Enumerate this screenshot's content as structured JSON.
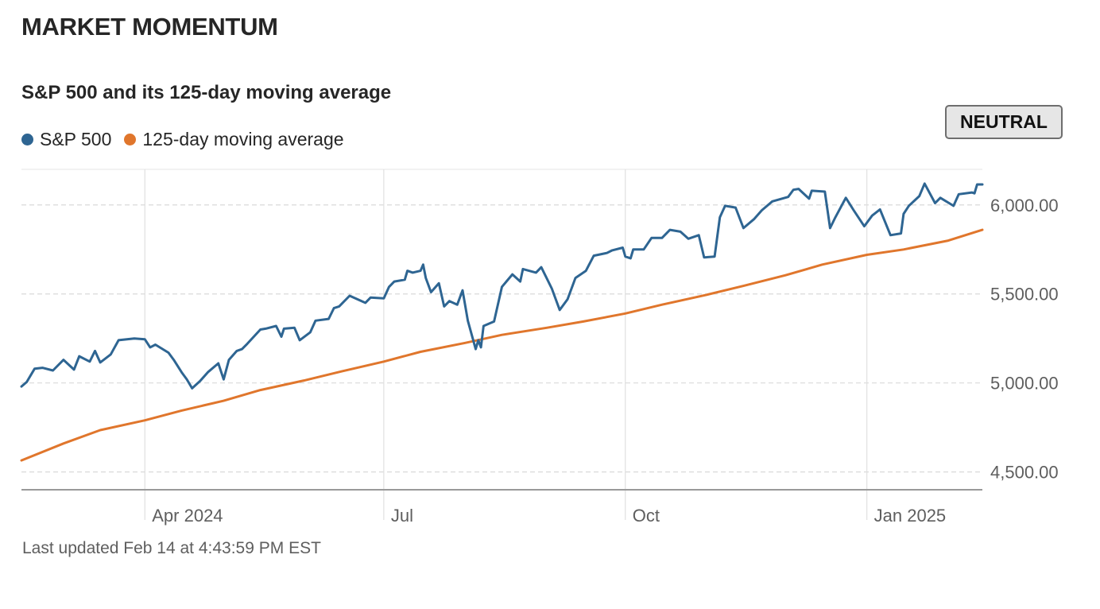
{
  "section": {
    "title": "MARKET MOMENTUM"
  },
  "status": {
    "label": "NEUTRAL"
  },
  "footer": {
    "updated": "Last updated Feb 14 at 4:43:59 PM EST"
  },
  "colors": {
    "sp500": "#2e6592",
    "moving_average": "#e0762c",
    "grid": "#d9d9d9",
    "axis": "#999999"
  },
  "chart_data": {
    "type": "line",
    "title": "S&P 500 and its 125-day moving average",
    "xlabel": "",
    "ylabel": "",
    "ylim": [
      4400,
      6200
    ],
    "x_range": [
      "2024-02-14",
      "2025-02-14"
    ],
    "x_ticks": [
      {
        "label": "Apr 2024",
        "date": "2024-04-01"
      },
      {
        "label": "Jul",
        "date": "2024-07-01"
      },
      {
        "label": "Oct",
        "date": "2024-10-01"
      },
      {
        "label": "Jan 2025",
        "date": "2025-01-01"
      }
    ],
    "y_ticks": [
      {
        "value": 4500,
        "label": "4,500.00"
      },
      {
        "value": 5000,
        "label": "5,000.00"
      },
      {
        "value": 5500,
        "label": "5,500.00"
      },
      {
        "value": 6000,
        "label": "6,000.00"
      }
    ],
    "legend": "top-left",
    "series": [
      {
        "name": "S&P 500",
        "color": "#2e6592",
        "points": [
          [
            "2024-02-14",
            4980
          ],
          [
            "2024-02-16",
            5005
          ],
          [
            "2024-02-19",
            5080
          ],
          [
            "2024-02-22",
            5085
          ],
          [
            "2024-02-26",
            5070
          ],
          [
            "2024-03-01",
            5130
          ],
          [
            "2024-03-05",
            5075
          ],
          [
            "2024-03-07",
            5150
          ],
          [
            "2024-03-11",
            5120
          ],
          [
            "2024-03-13",
            5180
          ],
          [
            "2024-03-15",
            5115
          ],
          [
            "2024-03-19",
            5160
          ],
          [
            "2024-03-22",
            5240
          ],
          [
            "2024-03-28",
            5250
          ],
          [
            "2024-04-01",
            5245
          ],
          [
            "2024-04-03",
            5200
          ],
          [
            "2024-04-05",
            5215
          ],
          [
            "2024-04-10",
            5170
          ],
          [
            "2024-04-12",
            5130
          ],
          [
            "2024-04-15",
            5060
          ],
          [
            "2024-04-17",
            5020
          ],
          [
            "2024-04-19",
            4970
          ],
          [
            "2024-04-22",
            5010
          ],
          [
            "2024-04-25",
            5060
          ],
          [
            "2024-04-29",
            5110
          ],
          [
            "2024-05-01",
            5020
          ],
          [
            "2024-05-03",
            5130
          ],
          [
            "2024-05-06",
            5180
          ],
          [
            "2024-05-08",
            5190
          ],
          [
            "2024-05-10",
            5220
          ],
          [
            "2024-05-15",
            5300
          ],
          [
            "2024-05-17",
            5305
          ],
          [
            "2024-05-21",
            5320
          ],
          [
            "2024-05-23",
            5260
          ],
          [
            "2024-05-24",
            5305
          ],
          [
            "2024-05-28",
            5310
          ],
          [
            "2024-05-30",
            5240
          ],
          [
            "2024-06-03",
            5285
          ],
          [
            "2024-06-05",
            5350
          ],
          [
            "2024-06-10",
            5360
          ],
          [
            "2024-06-12",
            5420
          ],
          [
            "2024-06-14",
            5430
          ],
          [
            "2024-06-18",
            5490
          ],
          [
            "2024-06-24",
            5450
          ],
          [
            "2024-06-26",
            5480
          ],
          [
            "2024-07-01",
            5475
          ],
          [
            "2024-07-03",
            5540
          ],
          [
            "2024-07-05",
            5570
          ],
          [
            "2024-07-09",
            5580
          ],
          [
            "2024-07-10",
            5630
          ],
          [
            "2024-07-12",
            5620
          ],
          [
            "2024-07-15",
            5630
          ],
          [
            "2024-07-16",
            5665
          ],
          [
            "2024-07-17",
            5590
          ],
          [
            "2024-07-19",
            5510
          ],
          [
            "2024-07-22",
            5560
          ],
          [
            "2024-07-24",
            5430
          ],
          [
            "2024-07-26",
            5460
          ],
          [
            "2024-07-29",
            5440
          ],
          [
            "2024-07-31",
            5520
          ],
          [
            "2024-08-02",
            5350
          ],
          [
            "2024-08-05",
            5190
          ],
          [
            "2024-08-06",
            5240
          ],
          [
            "2024-08-07",
            5200
          ],
          [
            "2024-08-08",
            5320
          ],
          [
            "2024-08-12",
            5345
          ],
          [
            "2024-08-15",
            5540
          ],
          [
            "2024-08-19",
            5610
          ],
          [
            "2024-08-22",
            5570
          ],
          [
            "2024-08-23",
            5640
          ],
          [
            "2024-08-28",
            5620
          ],
          [
            "2024-08-30",
            5650
          ],
          [
            "2024-09-03",
            5530
          ],
          [
            "2024-09-06",
            5410
          ],
          [
            "2024-09-09",
            5470
          ],
          [
            "2024-09-12",
            5590
          ],
          [
            "2024-09-16",
            5630
          ],
          [
            "2024-09-19",
            5715
          ],
          [
            "2024-09-24",
            5730
          ],
          [
            "2024-09-26",
            5745
          ],
          [
            "2024-09-30",
            5760
          ],
          [
            "2024-10-01",
            5710
          ],
          [
            "2024-10-03",
            5700
          ],
          [
            "2024-10-04",
            5750
          ],
          [
            "2024-10-08",
            5750
          ],
          [
            "2024-10-11",
            5815
          ],
          [
            "2024-10-15",
            5815
          ],
          [
            "2024-10-18",
            5860
          ],
          [
            "2024-10-22",
            5850
          ],
          [
            "2024-10-25",
            5810
          ],
          [
            "2024-10-29",
            5830
          ],
          [
            "2024-10-31",
            5705
          ],
          [
            "2024-11-04",
            5710
          ],
          [
            "2024-11-06",
            5930
          ],
          [
            "2024-11-08",
            5995
          ],
          [
            "2024-11-12",
            5985
          ],
          [
            "2024-11-15",
            5870
          ],
          [
            "2024-11-19",
            5920
          ],
          [
            "2024-11-22",
            5970
          ],
          [
            "2024-11-26",
            6020
          ],
          [
            "2024-12-02",
            6045
          ],
          [
            "2024-12-04",
            6085
          ],
          [
            "2024-12-06",
            6090
          ],
          [
            "2024-12-10",
            6035
          ],
          [
            "2024-12-11",
            6080
          ],
          [
            "2024-12-16",
            6075
          ],
          [
            "2024-12-18",
            5870
          ],
          [
            "2024-12-20",
            5930
          ],
          [
            "2024-12-24",
            6040
          ],
          [
            "2024-12-27",
            5970
          ],
          [
            "2024-12-31",
            5880
          ],
          [
            "2025-01-03",
            5940
          ],
          [
            "2025-01-06",
            5975
          ],
          [
            "2025-01-10",
            5830
          ],
          [
            "2025-01-14",
            5840
          ],
          [
            "2025-01-15",
            5950
          ],
          [
            "2025-01-17",
            5995
          ],
          [
            "2025-01-21",
            6050
          ],
          [
            "2025-01-23",
            6120
          ],
          [
            "2025-01-27",
            6010
          ],
          [
            "2025-01-29",
            6040
          ],
          [
            "2025-02-03",
            5995
          ],
          [
            "2025-02-05",
            6060
          ],
          [
            "2025-02-10",
            6070
          ],
          [
            "2025-02-11",
            6065
          ],
          [
            "2025-02-12",
            6115
          ],
          [
            "2025-02-14",
            6115
          ]
        ]
      },
      {
        "name": "125-day moving average",
        "color": "#e0762c",
        "points": [
          [
            "2024-02-14",
            4565
          ],
          [
            "2024-03-01",
            4660
          ],
          [
            "2024-03-15",
            4735
          ],
          [
            "2024-04-01",
            4790
          ],
          [
            "2024-04-15",
            4845
          ],
          [
            "2024-05-01",
            4900
          ],
          [
            "2024-05-15",
            4960
          ],
          [
            "2024-06-01",
            5015
          ],
          [
            "2024-06-15",
            5065
          ],
          [
            "2024-07-01",
            5120
          ],
          [
            "2024-07-15",
            5175
          ],
          [
            "2024-08-01",
            5225
          ],
          [
            "2024-08-15",
            5270
          ],
          [
            "2024-09-01",
            5310
          ],
          [
            "2024-09-15",
            5345
          ],
          [
            "2024-10-01",
            5390
          ],
          [
            "2024-10-15",
            5440
          ],
          [
            "2024-11-01",
            5495
          ],
          [
            "2024-11-15",
            5545
          ],
          [
            "2024-12-01",
            5605
          ],
          [
            "2024-12-15",
            5665
          ],
          [
            "2025-01-01",
            5720
          ],
          [
            "2025-01-15",
            5750
          ],
          [
            "2025-02-01",
            5800
          ],
          [
            "2025-02-14",
            5860
          ]
        ]
      }
    ]
  }
}
